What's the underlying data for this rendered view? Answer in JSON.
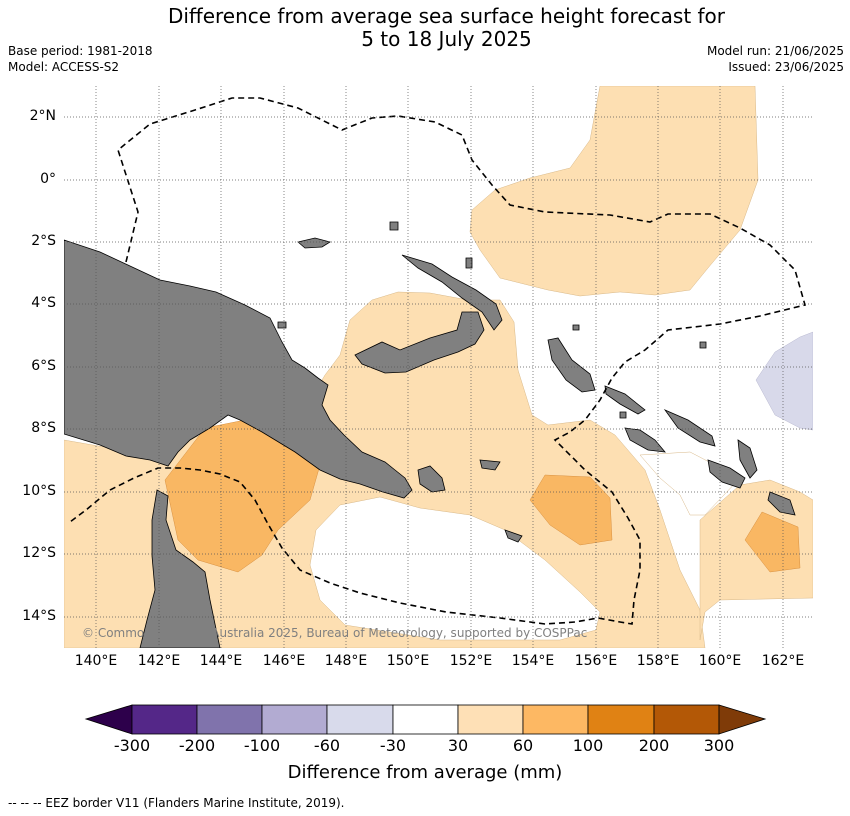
{
  "title": {
    "line1": "Difference from average sea surface height forecast for",
    "line2": "5 to 18 July 2025"
  },
  "meta": {
    "base_period": "Base period: 1981-2018",
    "model": "Model: ACCESS-S2",
    "model_run": "Model run: 21/06/2025",
    "issued": "Issued: 23/06/2025"
  },
  "map": {
    "lat_labels": [
      "2°N",
      "0°",
      "2°S",
      "4°S",
      "6°S",
      "8°S",
      "10°S",
      "12°S",
      "14°S"
    ],
    "lon_labels": [
      "140°E",
      "142°E",
      "144°E",
      "146°E",
      "148°E",
      "150°E",
      "152°E",
      "154°E",
      "156°E",
      "158°E",
      "160°E",
      "162°E"
    ],
    "copyright": "© Commonwealth of Australia 2025, Bureau of Meteorology, supported by COSPPac",
    "colors": {
      "land": "#808080",
      "shade_30_60": "#fddfb2",
      "shade_60_100": "#f9b763",
      "shade_neg_60_30": "#d8d9ea",
      "ocean": "#ffffff"
    }
  },
  "colorbar": {
    "title": "Difference from average (mm)",
    "tick_labels": [
      "-300",
      "-200",
      "-100",
      "-60",
      "-30",
      "30",
      "60",
      "100",
      "200",
      "300"
    ],
    "colors": [
      "#2d004b",
      "#542788",
      "#8073ac",
      "#b2abd2",
      "#d8daeb",
      "#ffffff",
      "#fee0b6",
      "#fdb863",
      "#e08214",
      "#b35806",
      "#7f3b08"
    ]
  },
  "footnote": "--  --  -- EEZ border V11 (Flanders Marine Institute, 2019)."
}
